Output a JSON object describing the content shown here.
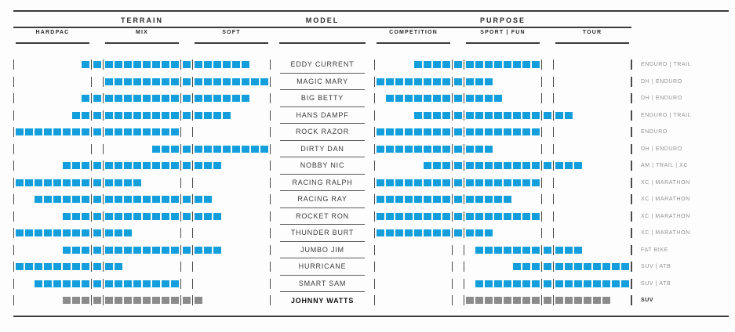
{
  "title_groups": {
    "terrain": "TERRAIN",
    "model": "MODEL",
    "purpose": "PURPOSE"
  },
  "columns": {
    "terrain": [
      "HARDPAC",
      "MIX",
      "SOFT"
    ],
    "purpose": [
      "COMPETITION",
      "SPORT | FUN",
      "TOUR"
    ]
  },
  "colors": {
    "bar_blue": "#149fdc",
    "bar_gray": "#8b8b8b",
    "rule": "#3c3c3c",
    "tick": "#4b4b4b"
  },
  "chart_data": {
    "type": "table",
    "description": "Tire model rating matrix. TERRAIN and PURPOSE sections are each a 26-slot square scale: slots 1-8 = first sub-column, 9 = inter-column slot, 10-17 = second sub-column, 18 = inter-column slot, 19-26 = third sub-column. terrain/purpose give inclusive [start,end] runs of filled squares.",
    "terrain_columns": [
      "HARDPAC",
      "MIX",
      "SOFT"
    ],
    "purpose_columns": [
      "COMPETITION",
      "SPORT | FUN",
      "TOUR"
    ],
    "rows": [
      {
        "model": "EDDY CURRENT",
        "terrain": [
          8,
          24
        ],
        "purpose": [
          5,
          17
        ],
        "category": "ENDURO | TRAIL",
        "highlight": false
      },
      {
        "model": "MAGIC MARY",
        "terrain": [
          10,
          26
        ],
        "purpose": [
          1,
          12
        ],
        "category": "DH | ENDURO",
        "highlight": false
      },
      {
        "model": "BIG BETTY",
        "terrain": [
          8,
          24
        ],
        "purpose": [
          2,
          13
        ],
        "category": "DH | ENDURO",
        "highlight": false
      },
      {
        "model": "HANS DAMPF",
        "terrain": [
          7,
          22
        ],
        "purpose": [
          5,
          20
        ],
        "category": "ENDURO | TRAIL",
        "highlight": false
      },
      {
        "model": "ROCK RAZOR",
        "terrain": [
          1,
          17
        ],
        "purpose": [
          1,
          17
        ],
        "category": "ENDURO",
        "highlight": false
      },
      {
        "model": "DIRTY DAN",
        "terrain": [
          15,
          26
        ],
        "purpose": [
          1,
          12
        ],
        "category": "DH | ENDURO",
        "highlight": false
      },
      {
        "model": "NOBBY NIC",
        "terrain": [
          6,
          21
        ],
        "purpose": [
          6,
          21
        ],
        "category": "AM | TRAIL | XC",
        "highlight": false
      },
      {
        "model": "RACING RALPH",
        "terrain": [
          1,
          13
        ],
        "purpose": [
          1,
          17
        ],
        "category": "XC | MARATHON",
        "highlight": false
      },
      {
        "model": "RACING RAY",
        "terrain": [
          3,
          20
        ],
        "purpose": [
          1,
          14
        ],
        "category": "XC | MARATHON",
        "highlight": false
      },
      {
        "model": "ROCKET RON",
        "terrain": [
          6,
          21
        ],
        "purpose": [
          1,
          17
        ],
        "category": "XC | MARATHON",
        "highlight": false
      },
      {
        "model": "THUNDER BURT",
        "terrain": [
          1,
          12
        ],
        "purpose": [
          1,
          12
        ],
        "category": "XC | MARATHON",
        "highlight": false
      },
      {
        "model": "JUMBO JIM",
        "terrain": [
          6,
          21
        ],
        "purpose": [
          11,
          21
        ],
        "category": "FAT BIKE",
        "highlight": false
      },
      {
        "model": "HURRICANE",
        "terrain": [
          1,
          11
        ],
        "purpose": [
          15,
          26
        ],
        "category": "SUV | ATB",
        "highlight": false
      },
      {
        "model": "SMART SAM",
        "terrain": [
          3,
          17
        ],
        "purpose": [
          11,
          26
        ],
        "category": "SUV | ATB",
        "highlight": false
      },
      {
        "model": "JOHNNY WATTS",
        "terrain": [
          6,
          19
        ],
        "purpose": [
          10,
          24
        ],
        "category": "SUV",
        "highlight": true
      }
    ]
  }
}
